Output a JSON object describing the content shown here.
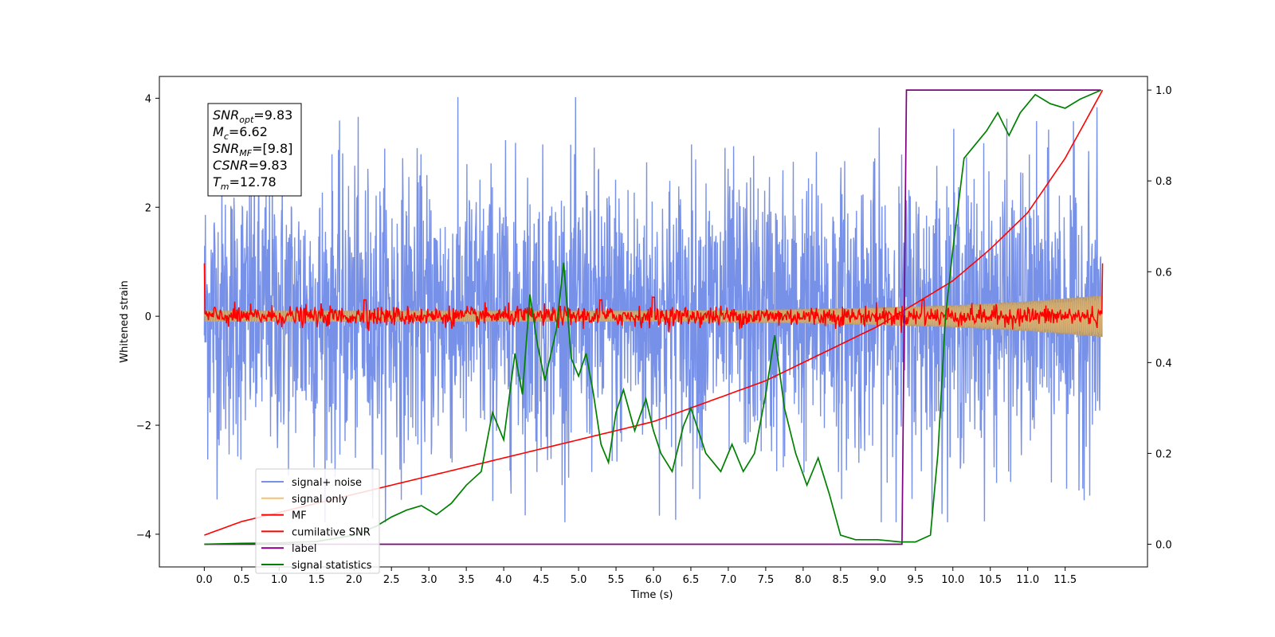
{
  "chart_data": {
    "type": "line",
    "title": "",
    "xlabel": "Time (s)",
    "ylabel_left": "Whitened strain",
    "ylabel_right": "",
    "xlim": [
      -0.6,
      12.6
    ],
    "ylim_left": [
      -4.6,
      4.4
    ],
    "ylim_right": [
      -0.05,
      1.03
    ],
    "x_ticks": [
      0.0,
      0.5,
      1.0,
      1.5,
      2.0,
      2.5,
      3.0,
      3.5,
      4.0,
      4.5,
      5.0,
      5.5,
      6.0,
      6.5,
      7.0,
      7.5,
      8.0,
      8.5,
      9.0,
      9.5,
      10.0,
      10.5,
      11.0,
      11.5
    ],
    "x_tick_labels": [
      "0.0",
      "0.5",
      "1.0",
      "1.5",
      "2.0",
      "2.5",
      "3.0",
      "3.5",
      "4.0",
      "4.5",
      "5.0",
      "5.5",
      "6.0",
      "6.5",
      "7.0",
      "7.5",
      "8.0",
      "8.5",
      "9.0",
      "9.5",
      "10.0",
      "10.5",
      "11.0",
      "11.5"
    ],
    "y_ticks_left": [
      -4,
      -2,
      0,
      2,
      4
    ],
    "y_tick_labels_left": [
      "−4",
      "−2",
      "0",
      "2",
      "4"
    ],
    "y_ticks_right": [
      0.0,
      0.2,
      0.4,
      0.6,
      0.8,
      1.0
    ],
    "y_tick_labels_right": [
      "0.0",
      "0.2",
      "0.4",
      "0.6",
      "0.8",
      "1.0"
    ],
    "grid": false,
    "legend_position": "lower-left",
    "annotation": {
      "lines": [
        {
          "base": "SNR",
          "sub": "opt",
          "value": "=9.83"
        },
        {
          "base": "M",
          "sub": "c",
          "value": "=6.62"
        },
        {
          "base": "SNR",
          "sub": "MF",
          "value": "=[9.8]"
        },
        {
          "base": "CSNR",
          "sub": "",
          "value": "=9.83"
        },
        {
          "base": "T",
          "sub": "m",
          "value": "=12.78"
        }
      ]
    },
    "series": [
      {
        "name": "signal+ noise",
        "axis": "left",
        "color": "#7790e8",
        "style": "dense-noise",
        "x_range": [
          0.0,
          11.98
        ],
        "amplitude_typical": 1.3,
        "ymax": 4.02,
        "ymin": -3.78
      },
      {
        "name": "signal only",
        "axis": "left",
        "color": "#f5c070",
        "style": "chirp-envelope",
        "envelope": {
          "x": [
            0.0,
            2.0,
            4.0,
            6.0,
            7.0,
            8.0,
            9.0,
            10.0,
            11.0,
            12.0
          ],
          "y": [
            0.1,
            0.1,
            0.1,
            0.1,
            0.11,
            0.13,
            0.16,
            0.2,
            0.27,
            0.38
          ]
        }
      },
      {
        "name": "MF",
        "axis": "left",
        "color": "#ff0000",
        "style": "wiggle",
        "x_range": [
          0.0,
          12.0
        ],
        "edge_values": [
          0.97,
          0.97
        ],
        "amplitude_typical": 0.1,
        "peaks": [
          {
            "x": 2.15,
            "y": 0.3
          },
          {
            "x": 5.3,
            "y": 0.3
          },
          {
            "x": 6.0,
            "y": 0.35
          },
          {
            "x": 9.6,
            "y": 0.3
          }
        ]
      },
      {
        "name": "cumilative SNR",
        "axis": "right",
        "color": "#ff0000",
        "x": [
          0.0,
          0.5,
          1.0,
          1.5,
          2.0,
          2.5,
          3.0,
          3.5,
          4.0,
          4.5,
          5.0,
          5.5,
          6.0,
          6.5,
          7.0,
          7.5,
          8.0,
          8.5,
          9.0,
          9.5,
          10.0,
          10.5,
          11.0,
          11.5,
          12.0
        ],
        "values": [
          0.02,
          0.05,
          0.07,
          0.09,
          0.11,
          0.13,
          0.15,
          0.17,
          0.19,
          0.21,
          0.23,
          0.25,
          0.27,
          0.3,
          0.33,
          0.36,
          0.4,
          0.44,
          0.48,
          0.53,
          0.58,
          0.65,
          0.73,
          0.85,
          1.0
        ]
      },
      {
        "name": "label",
        "axis": "right",
        "color": "#800080",
        "x": [
          0.0,
          9.32,
          9.38,
          11.98
        ],
        "values": [
          0.0,
          0.0,
          1.0,
          1.0
        ]
      },
      {
        "name": "signal statistics",
        "axis": "right",
        "color": "#008000",
        "x": [
          0.0,
          0.5,
          1.0,
          1.5,
          2.0,
          2.3,
          2.5,
          2.7,
          2.9,
          3.1,
          3.3,
          3.5,
          3.7,
          3.85,
          4.0,
          4.15,
          4.25,
          4.35,
          4.45,
          4.55,
          4.7,
          4.8,
          4.9,
          5.0,
          5.1,
          5.2,
          5.3,
          5.4,
          5.5,
          5.6,
          5.75,
          5.9,
          6.0,
          6.1,
          6.25,
          6.4,
          6.5,
          6.7,
          6.9,
          7.05,
          7.2,
          7.35,
          7.5,
          7.62,
          7.75,
          7.9,
          8.05,
          8.2,
          8.35,
          8.5,
          8.7,
          9.0,
          9.3,
          9.5,
          9.7,
          9.8,
          9.9,
          10.0,
          10.15,
          10.3,
          10.45,
          10.6,
          10.75,
          10.9,
          11.1,
          11.3,
          11.5,
          11.7,
          11.98
        ],
        "values": [
          0.0,
          0.002,
          0.003,
          0.006,
          0.02,
          0.04,
          0.06,
          0.075,
          0.085,
          0.065,
          0.09,
          0.13,
          0.16,
          0.29,
          0.23,
          0.42,
          0.33,
          0.55,
          0.44,
          0.36,
          0.47,
          0.62,
          0.41,
          0.37,
          0.42,
          0.33,
          0.22,
          0.18,
          0.29,
          0.34,
          0.25,
          0.32,
          0.25,
          0.2,
          0.16,
          0.26,
          0.3,
          0.2,
          0.16,
          0.22,
          0.16,
          0.2,
          0.33,
          0.46,
          0.3,
          0.2,
          0.13,
          0.19,
          0.11,
          0.02,
          0.01,
          0.01,
          0.005,
          0.005,
          0.02,
          0.2,
          0.5,
          0.65,
          0.85,
          0.88,
          0.91,
          0.95,
          0.9,
          0.95,
          0.99,
          0.97,
          0.96,
          0.98,
          1.0
        ]
      }
    ]
  }
}
